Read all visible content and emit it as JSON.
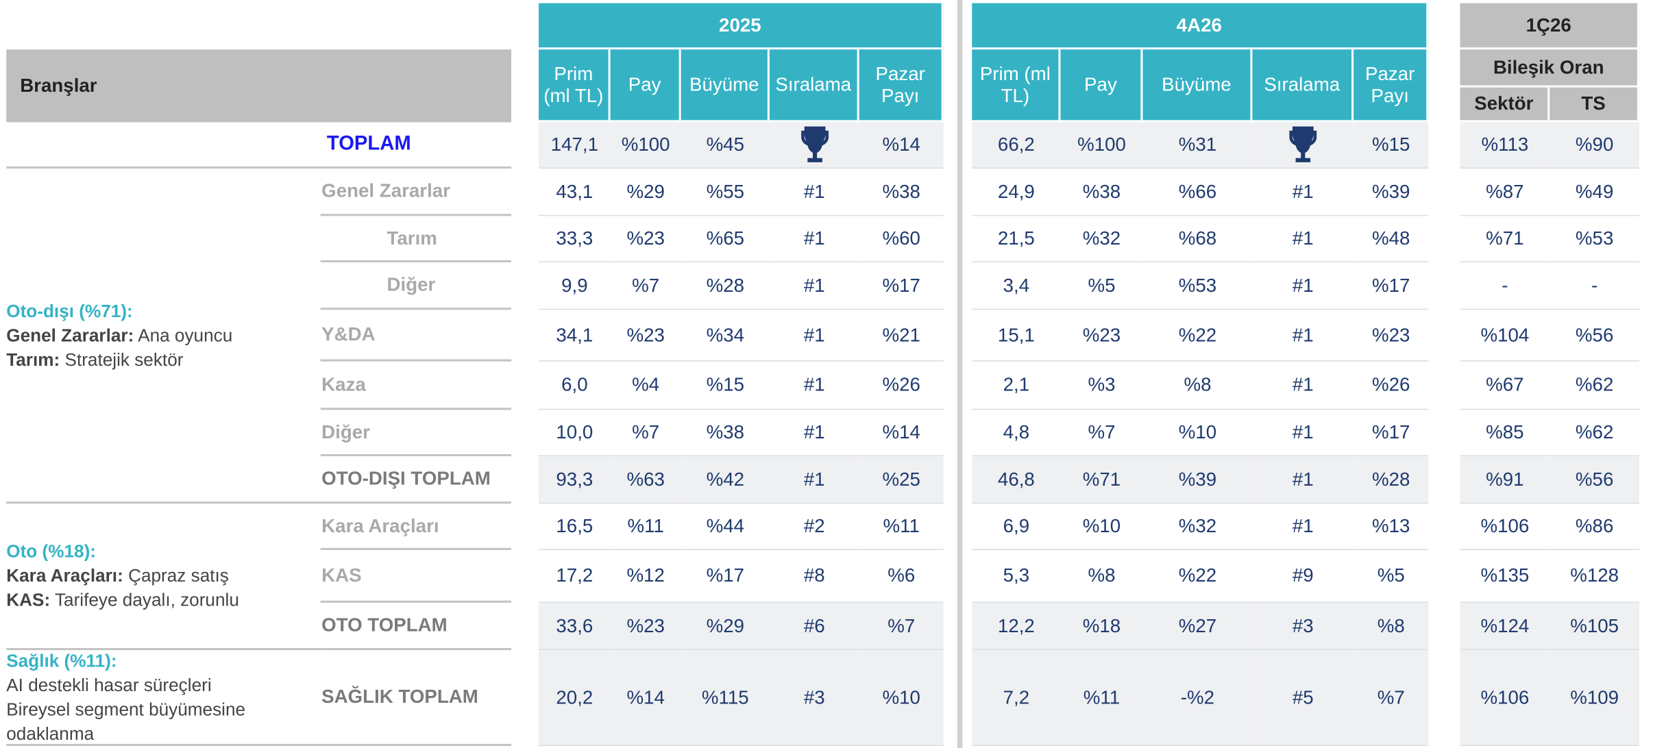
{
  "header": {
    "branches": "Branşlar",
    "periods": [
      {
        "title": "2025",
        "columns": [
          "Prim (ml TL)",
          "Pay",
          "Büyüme",
          "Sıralama",
          "Pazar Payı"
        ]
      },
      {
        "title": "4A26",
        "columns": [
          "Prim (ml TL)",
          "Pay",
          "Büyüme",
          "Sıralama",
          "Pazar Payı"
        ]
      }
    ],
    "ratio": {
      "title": "1Ç26",
      "subtitle": "Bileşik Oran",
      "columns": [
        "Sektör",
        "TS"
      ]
    }
  },
  "rows": [
    {
      "label": "TOPLAM",
      "periods": [
        [
          "147,1",
          "%100",
          "%45",
          null,
          "%14"
        ],
        [
          "66,2",
          "%100",
          "%31",
          null,
          "%15"
        ]
      ],
      "ratios": [
        "%113",
        "%90"
      ]
    },
    {
      "label": "Genel Zararlar",
      "periods": [
        [
          "43,1",
          "%29",
          "%55",
          "#1",
          "%38"
        ],
        [
          "24,9",
          "%38",
          "%66",
          "#1",
          "%39"
        ]
      ],
      "ratios": [
        "%87",
        "%49"
      ]
    },
    {
      "label": "Tarım",
      "periods": [
        [
          "33,3",
          "%23",
          "%65",
          "#1",
          "%60"
        ],
        [
          "21,5",
          "%32",
          "%68",
          "#1",
          "%48"
        ]
      ],
      "ratios": [
        "%71",
        "%53"
      ]
    },
    {
      "label": "Diğer",
      "periods": [
        [
          "9,9",
          "%7",
          "%28",
          "#1",
          "%17"
        ],
        [
          "3,4",
          "%5",
          "%53",
          "#1",
          "%17"
        ]
      ],
      "ratios": [
        "-",
        "-"
      ]
    },
    {
      "label": "Y&DA",
      "periods": [
        [
          "34,1",
          "%23",
          "%34",
          "#1",
          "%21"
        ],
        [
          "15,1",
          "%23",
          "%22",
          "#1",
          "%23"
        ]
      ],
      "ratios": [
        "%104",
        "%56"
      ]
    },
    {
      "label": "Kaza",
      "periods": [
        [
          "6,0",
          "%4",
          "%15",
          "#1",
          "%26"
        ],
        [
          "2,1",
          "%3",
          "%8",
          "#1",
          "%26"
        ]
      ],
      "ratios": [
        "%67",
        "%62"
      ]
    },
    {
      "label": "Diğer",
      "periods": [
        [
          "10,0",
          "%7",
          "%38",
          "#1",
          "%14"
        ],
        [
          "4,8",
          "%7",
          "%10",
          "#1",
          "%17"
        ]
      ],
      "ratios": [
        "%85",
        "%62"
      ]
    },
    {
      "label": "OTO-DIŞI TOPLAM",
      "periods": [
        [
          "93,3",
          "%63",
          "%42",
          "#1",
          "%25"
        ],
        [
          "46,8",
          "%71",
          "%39",
          "#1",
          "%28"
        ]
      ],
      "ratios": [
        "%91",
        "%56"
      ]
    },
    {
      "label": "Kara Araçları",
      "periods": [
        [
          "16,5",
          "%11",
          "%44",
          "#2",
          "%11"
        ],
        [
          "6,9",
          "%10",
          "%32",
          "#1",
          "%13"
        ]
      ],
      "ratios": [
        "%106",
        "%86"
      ]
    },
    {
      "label": "KAS",
      "periods": [
        [
          "17,2",
          "%12",
          "%17",
          "#8",
          "%6"
        ],
        [
          "5,3",
          "%8",
          "%22",
          "#9",
          "%5"
        ]
      ],
      "ratios": [
        "%135",
        "%128"
      ]
    },
    {
      "label": "OTO TOPLAM",
      "periods": [
        [
          "33,6",
          "%23",
          "%29",
          "#6",
          "%7"
        ],
        [
          "12,2",
          "%18",
          "%27",
          "#3",
          "%8"
        ]
      ],
      "ratios": [
        "%124",
        "%105"
      ]
    },
    {
      "label": "SAĞLIK TOPLAM",
      "periods": [
        [
          "20,2",
          "%14",
          "%115",
          "#3",
          "%10"
        ],
        [
          "7,2",
          "%11",
          "-%2",
          "#5",
          "%7"
        ]
      ],
      "ratios": [
        "%106",
        "%109"
      ]
    }
  ],
  "segments": [
    {
      "title": "Oto-dışı (%71):",
      "lines": [
        {
          "term": "Genel Zararlar:",
          "text": "Ana oyuncu"
        },
        {
          "term": "Tarım:",
          "text": "Stratejik sektör"
        }
      ]
    },
    {
      "title": "Oto (%18):",
      "lines": [
        {
          "term": "Kara Araçları:",
          "text": "Çapraz satış"
        },
        {
          "term": "KAS:",
          "text": "Tarifeye dayalı, zorunlu"
        }
      ]
    },
    {
      "title": "Sağlık (%11):",
      "lines": [
        {
          "text": "AI destekli hasar süreçleri"
        },
        {
          "text": "Bireysel segment büyümesine odaklanma"
        }
      ]
    }
  ]
}
